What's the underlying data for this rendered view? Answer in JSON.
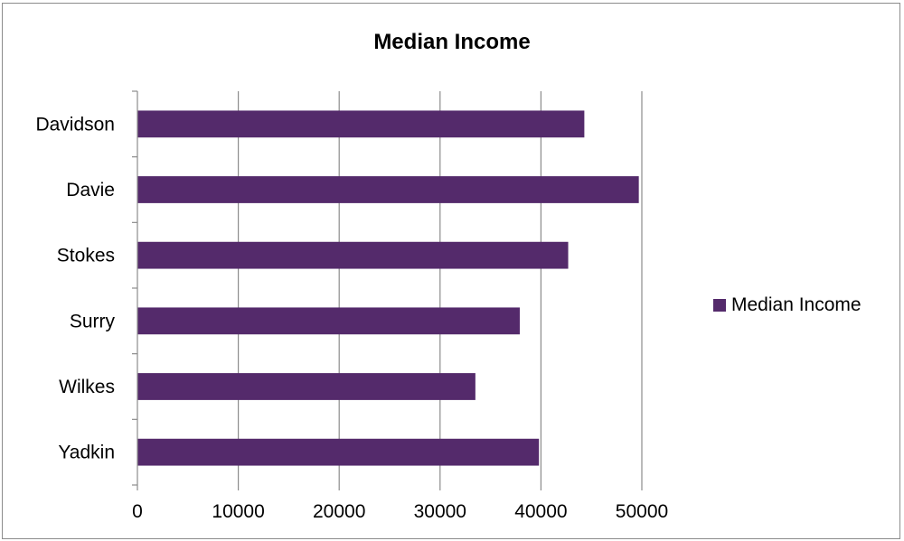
{
  "chart_data": {
    "type": "bar",
    "orientation": "horizontal",
    "title": "Median Income",
    "categories": [
      "Davidson",
      "Davie",
      "Stokes",
      "Surry",
      "Wilkes",
      "Yadkin"
    ],
    "series": [
      {
        "name": "Median Income",
        "color": "#542a6b",
        "values": [
          44300,
          49700,
          42700,
          37900,
          33500,
          39800
        ]
      }
    ],
    "xlim": [
      0,
      50000
    ],
    "xticks": [
      0,
      10000,
      20000,
      30000,
      40000,
      50000
    ],
    "xlabel": "",
    "ylabel": "",
    "grid": "vertical",
    "legend_position": "right"
  }
}
